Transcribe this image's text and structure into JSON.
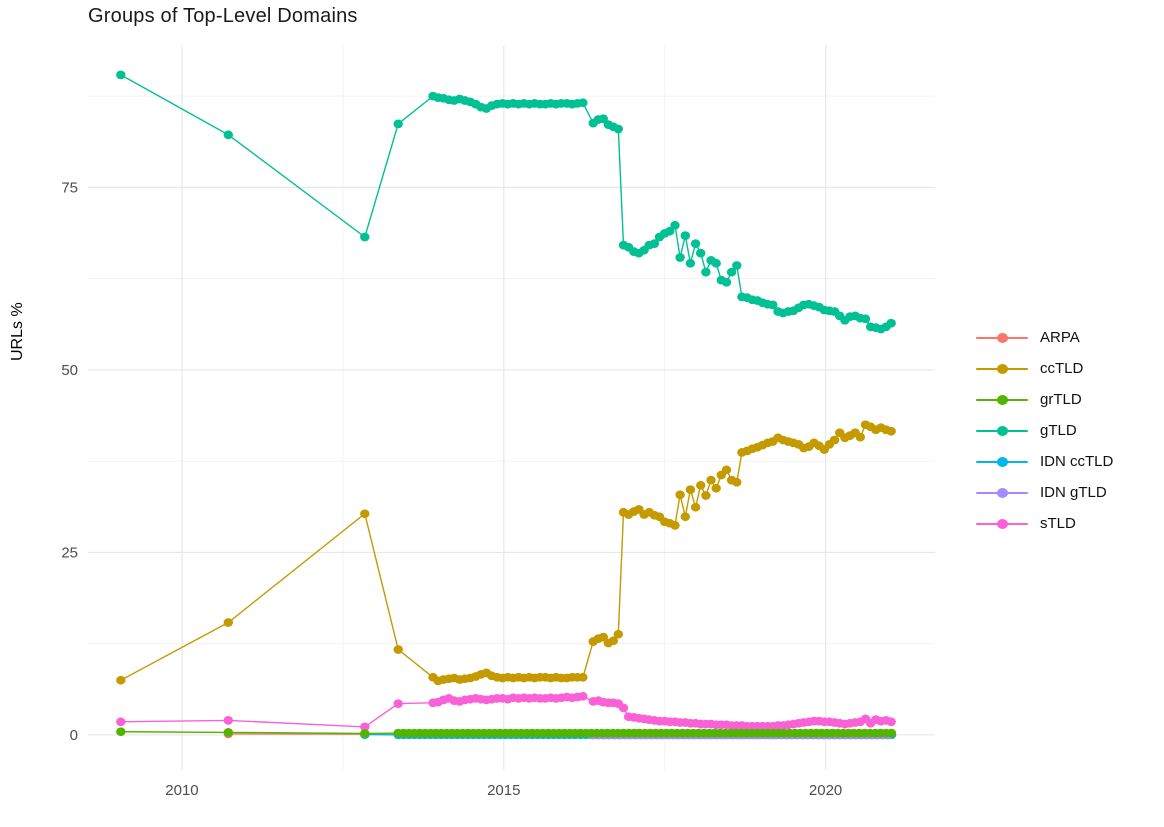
{
  "chart_data": {
    "type": "line",
    "title": "Groups of Top-Level Domains",
    "xlabel": "",
    "ylabel": "URLs %",
    "x_ticks": [
      2010,
      2015,
      2020
    ],
    "x_minor_ticks": [
      2012.5,
      2017.5
    ],
    "y_ticks": [
      0,
      25,
      50,
      75
    ],
    "y_minor_ticks": [
      12.5,
      37.5,
      62.5,
      87.5
    ],
    "xlim": [
      2008.54,
      2021.7
    ],
    "ylim": [
      -4.8,
      94.5
    ],
    "grid": "major+minor",
    "legend_position": "right",
    "series": [
      {
        "name": "ARPA",
        "color": "#F8766D",
        "z": 1,
        "points": [
          [
            2010.72,
            0.15
          ],
          [
            2012.84,
            0.1
          ]
        ],
        "runs": [
          {
            "from": 2013.36,
            "step": 0.0833,
            "count": 93,
            "value": 0.05
          }
        ]
      },
      {
        "name": "ccTLD",
        "color": "#C49A00",
        "z": 5,
        "points": [
          [
            2009.05,
            7.5
          ],
          [
            2010.72,
            15.4
          ],
          [
            2012.84,
            30.3
          ],
          [
            2013.36,
            11.7
          ],
          [
            2013.9,
            7.9
          ]
        ],
        "runs": [
          {
            "from": 2013.98,
            "step": 0.0833,
            "values": [
              7.4,
              7.6,
              7.7,
              7.8,
              7.6,
              7.7,
              7.8,
              8.0,
              8.3,
              8.5,
              8.1,
              7.9,
              7.8,
              7.9,
              7.8,
              7.9,
              7.8,
              7.9,
              7.8,
              7.9,
              7.9,
              7.8,
              7.9,
              7.8,
              7.8,
              7.9,
              7.9,
              7.9
            ]
          },
          {
            "from": 2016.39,
            "step": 0.078,
            "values": [
              12.8,
              13.2,
              13.4,
              12.6,
              12.9,
              13.8
            ]
          },
          {
            "from": 2016.86,
            "step": 0.08,
            "values": [
              30.5,
              30.2,
              30.6,
              30.9,
              30.2,
              30.5,
              30.1,
              29.9,
              29.2,
              29.0,
              28.7
            ]
          },
          {
            "from": 2017.74,
            "step": 0.08,
            "values": [
              32.9,
              29.9,
              33.6,
              31.2,
              34.2,
              32.8,
              34.9,
              33.8,
              35.6,
              36.3,
              34.9,
              34.6
            ]
          },
          {
            "from": 2018.7,
            "step": 0.08,
            "values": [
              38.7,
              38.9,
              39.2,
              39.4,
              39.7,
              40.0,
              40.2,
              40.7,
              40.4,
              40.2,
              40.0,
              39.8,
              39.3,
              39.5,
              40.0,
              39.6,
              39.1,
              39.8,
              40.4,
              41.4,
              40.7,
              41.0,
              41.4,
              40.8,
              42.5,
              42.2,
              41.8,
              42.1,
              41.8,
              41.6
            ]
          }
        ]
      },
      {
        "name": "grTLD",
        "color": "#53B400",
        "z": 7,
        "points": [
          [
            2009.05,
            0.45
          ],
          [
            2010.72,
            0.35
          ],
          [
            2012.84,
            0.2
          ]
        ],
        "runs": [
          {
            "from": 2013.36,
            "step": 0.0833,
            "count": 93,
            "value": 0.25
          }
        ]
      },
      {
        "name": "gTLD",
        "color": "#00C094",
        "z": 6,
        "points": [
          [
            2009.05,
            90.4
          ],
          [
            2010.72,
            82.2
          ],
          [
            2012.84,
            68.2
          ],
          [
            2013.36,
            83.7
          ],
          [
            2013.9,
            87.5
          ]
        ],
        "runs": [
          {
            "from": 2013.98,
            "step": 0.0833,
            "values": [
              87.3,
              87.2,
              87.0,
              86.9,
              87.1,
              86.9,
              86.7,
              86.4,
              86.0,
              85.8,
              86.2,
              86.4,
              86.5,
              86.4,
              86.5,
              86.4,
              86.5,
              86.4,
              86.5,
              86.4,
              86.4,
              86.5,
              86.4,
              86.5,
              86.5,
              86.4,
              86.5,
              86.6
            ]
          },
          {
            "from": 2016.39,
            "step": 0.078,
            "values": [
              83.8,
              84.3,
              84.4,
              83.6,
              83.3,
              83.0
            ]
          },
          {
            "from": 2016.86,
            "step": 0.08,
            "values": [
              67.1,
              66.8,
              66.2,
              66.0,
              66.4,
              67.1,
              67.3,
              68.2,
              68.7,
              69.0,
              69.8
            ]
          },
          {
            "from": 2017.74,
            "step": 0.08,
            "values": [
              65.4,
              68.4,
              64.6,
              67.3,
              66.0,
              63.4,
              65.0,
              64.6,
              62.3,
              62.0,
              63.4,
              64.3
            ]
          },
          {
            "from": 2018.7,
            "step": 0.08,
            "values": [
              60.0,
              59.9,
              59.6,
              59.5,
              59.2,
              59.0,
              58.9,
              58.0,
              57.8,
              58.0,
              58.1,
              58.5,
              58.9,
              59.0,
              58.8,
              58.6,
              58.2,
              58.1,
              58.0,
              57.4,
              56.8,
              57.3,
              57.4,
              57.1,
              57.0,
              55.9,
              55.8,
              55.6,
              55.9,
              56.4
            ]
          }
        ]
      },
      {
        "name": "IDN ccTLD",
        "color": "#00B6EB",
        "z": 2,
        "points": [
          [
            2012.84,
            0.05
          ]
        ],
        "runs": [
          {
            "from": 2013.36,
            "step": 0.0833,
            "count": 93,
            "value": 0.02
          }
        ]
      },
      {
        "name": "IDN gTLD",
        "color": "#A58AFF",
        "z": 3,
        "points": [],
        "runs": [
          {
            "from": 2016.39,
            "step": 0.0833,
            "count": 56,
            "value": 0.0
          }
        ]
      },
      {
        "name": "sTLD",
        "color": "#FB61D7",
        "z": 4,
        "points": [
          [
            2009.05,
            1.8
          ],
          [
            2010.72,
            2.0
          ],
          [
            2012.84,
            1.1
          ],
          [
            2013.36,
            4.3
          ],
          [
            2013.9,
            4.4
          ]
        ],
        "runs": [
          {
            "from": 2013.98,
            "step": 0.0833,
            "values": [
              4.5,
              4.8,
              5.0,
              4.7,
              4.6,
              4.8,
              4.9,
              5.0,
              4.9,
              4.8,
              4.9,
              5.0,
              5.0,
              4.9,
              5.1,
              5.0,
              5.1,
              5.0,
              5.1,
              5.0,
              5.0,
              5.1,
              5.0,
              5.1,
              5.2,
              5.1,
              5.2,
              5.3
            ]
          },
          {
            "from": 2016.39,
            "step": 0.078,
            "values": [
              4.6,
              4.7,
              4.5,
              4.4,
              4.4,
              4.3
            ]
          },
          {
            "from": 2016.86,
            "step": 0.08,
            "values": [
              3.7,
              2.5,
              2.4,
              2.3,
              2.2,
              2.1,
              2.0,
              1.9,
              1.9,
              1.8,
              1.8
            ]
          },
          {
            "from": 2017.74,
            "step": 0.08,
            "values": [
              1.7,
              1.7,
              1.6,
              1.6,
              1.5,
              1.5,
              1.5,
              1.4,
              1.4,
              1.4,
              1.3,
              1.3
            ]
          },
          {
            "from": 2018.7,
            "step": 0.08,
            "values": [
              1.3,
              1.2,
              1.2,
              1.2,
              1.2,
              1.2,
              1.2,
              1.3,
              1.3,
              1.4,
              1.5,
              1.6,
              1.7,
              1.8,
              1.9,
              1.9,
              1.8,
              1.8,
              1.7,
              1.6,
              1.5,
              1.6,
              1.7,
              1.8,
              2.2,
              1.6,
              2.1,
              1.9,
              2.0,
              1.8
            ]
          }
        ]
      }
    ],
    "style": {
      "background": "#FFFFFF",
      "grid_major_color": "#E8E8E8",
      "grid_minor_color": "#F1F1F1",
      "tick_label_color": "#4D4D4D",
      "title_color": "#1A1A1A",
      "point_radius": 4.7,
      "line_width": 1.4
    }
  }
}
